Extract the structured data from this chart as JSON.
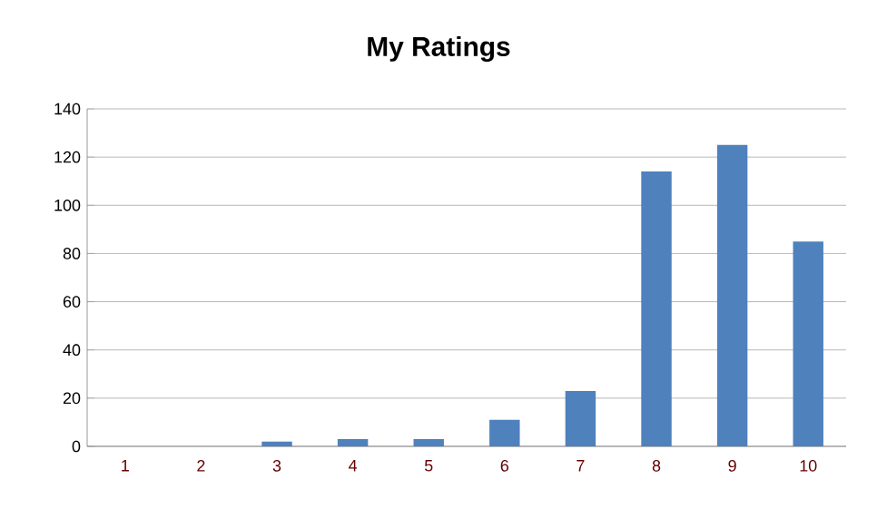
{
  "chart_data": {
    "type": "bar",
    "title": "My Ratings",
    "categories": [
      "1",
      "2",
      "3",
      "4",
      "5",
      "6",
      "7",
      "8",
      "9",
      "10"
    ],
    "values": [
      0,
      0,
      2,
      3,
      3,
      11,
      23,
      114,
      125,
      85
    ],
    "color": "#4f81bd",
    "ylim": [
      0,
      140
    ],
    "yticks": [
      0,
      20,
      40,
      60,
      80,
      100,
      120,
      140
    ],
    "grid": "y"
  }
}
